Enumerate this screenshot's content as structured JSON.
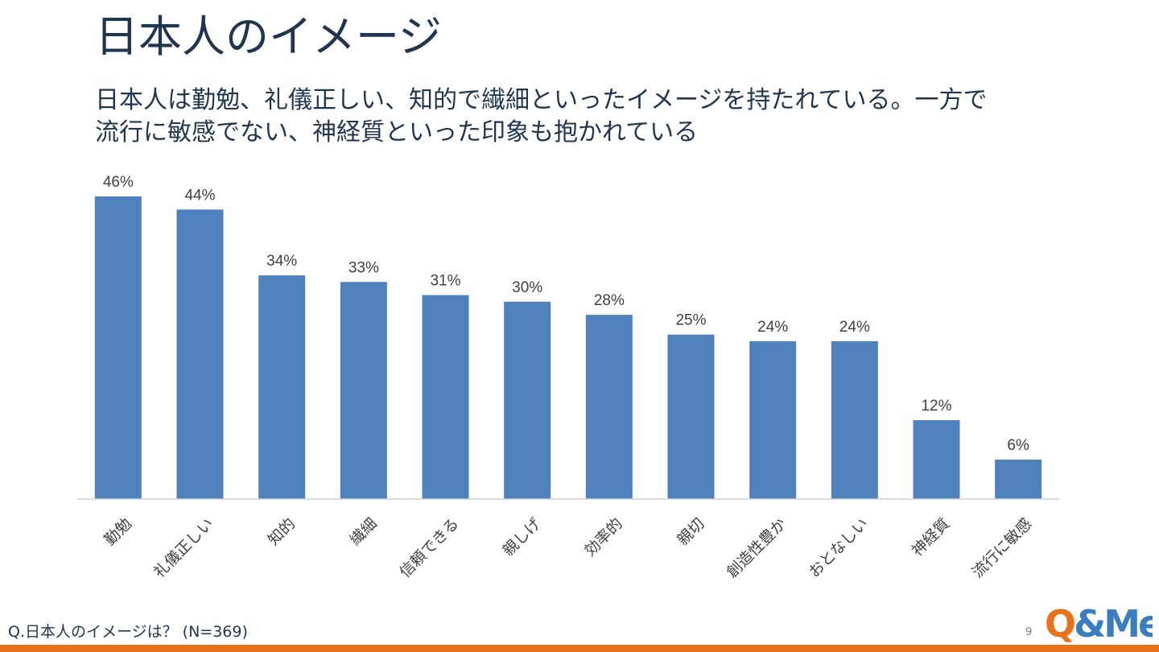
{
  "header": {
    "title": "日本人のイメージ",
    "subtitle_line1": "日本人は勤勉、礼儀正しい、知的で繊細といったイメージを持たれている。一方で",
    "subtitle_line2": "流行に敏感でない、神経質といった印象も抱かれている"
  },
  "footer": {
    "question": "Q.日本人のイメージは？ (N=369)",
    "page_number": "9"
  },
  "logo": {
    "text": "Q&Me",
    "colors": {
      "q": "#e8711c",
      "rest": "#3a7ebf"
    }
  },
  "colors": {
    "bar": "#4f81bd",
    "accent": "#e8711c",
    "text": "#1f3550",
    "axis": "#d0d0d0"
  },
  "chart_data": {
    "type": "bar",
    "categories": [
      "勤勉",
      "礼儀正しい",
      "知的",
      "繊細",
      "信頼できる",
      "親しげ",
      "効率的",
      "親切",
      "創造性豊か",
      "おとなしい",
      "神経質",
      "流行に敏感"
    ],
    "values": [
      46,
      44,
      34,
      33,
      31,
      30,
      28,
      25,
      24,
      24,
      12,
      6
    ],
    "data_labels": [
      "46%",
      "44%",
      "34%",
      "33%",
      "31%",
      "30%",
      "28%",
      "25%",
      "24%",
      "24%",
      "12%",
      "6%"
    ],
    "unit": "%",
    "ylim": [
      0,
      46
    ],
    "grid": false,
    "legend": "none",
    "title": "",
    "xlabel": "",
    "ylabel": ""
  }
}
